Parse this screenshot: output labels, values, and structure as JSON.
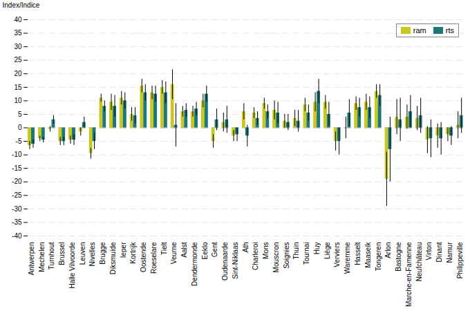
{
  "chart_data": {
    "type": "bar",
    "ylabel": "Index/Indice",
    "categories": [
      "Antwerpen",
      "Mechelen",
      "Turnhout",
      "Brussel",
      "Halle Vilvoorde",
      "Leuven",
      "Nivelles",
      "Brugge",
      "Diksmuide",
      "Ieper",
      "Kortrijk",
      "Oostende",
      "Roeselare",
      "Tielt",
      "Veurne",
      "Aalst",
      "Dendermonde",
      "Eeklo",
      "Gent",
      "Oudenaarde",
      "Sint-Niklaas",
      "Ath",
      "Charleroi",
      "Mons",
      "Mouscron",
      "Soignies",
      "Thuin",
      "Tournai",
      "Huy",
      "Liège",
      "Verviers",
      "Waremme",
      "Hasselt",
      "Maaseik",
      "Tongeren",
      "Arlon",
      "Bastogne",
      "Marche-en-Famenne",
      "Neufchâteau",
      "Virton",
      "Dinant",
      "Namur",
      "Philippeville"
    ],
    "series": [
      {
        "name": "ram",
        "color": "#c8c81e",
        "values": [
          -6.5,
          -4.0,
          -0.5,
          -5.0,
          -4.5,
          -1.5,
          -9.5,
          11.0,
          9.5,
          11.0,
          5.0,
          15.5,
          13.0,
          15.0,
          16.0,
          6.0,
          6.0,
          10.0,
          -5.0,
          2.0,
          -3.0,
          6.0,
          5.5,
          9.0,
          6.5,
          2.5,
          3.5,
          8.5,
          9.5,
          9.5,
          -5.0,
          0.0,
          9.0,
          9.5,
          13.5,
          -19.0,
          4.0,
          4.0,
          3.5,
          -4.5,
          -3.0,
          -2.5,
          1.0
        ],
        "error_low": [
          1.5,
          1.0,
          1.0,
          1.5,
          1.5,
          1.5,
          2.0,
          1.5,
          3.0,
          2.5,
          2.5,
          2.5,
          2.5,
          2.5,
          5.5,
          2.0,
          2.0,
          2.5,
          2.5,
          3.5,
          2.0,
          3.0,
          2.0,
          2.0,
          3.5,
          2.5,
          3.0,
          2.5,
          3.5,
          2.5,
          3.5,
          4.0,
          2.5,
          3.0,
          2.5,
          10.0,
          6.5,
          4.5,
          4.5,
          5.0,
          4.5,
          2.5,
          5.0
        ],
        "error_high": [
          1.5,
          1.0,
          1.0,
          1.5,
          1.5,
          1.5,
          2.0,
          1.5,
          3.0,
          2.5,
          2.5,
          2.5,
          2.5,
          2.5,
          5.5,
          2.0,
          2.0,
          2.5,
          2.5,
          3.5,
          2.0,
          3.0,
          2.0,
          2.0,
          3.5,
          2.5,
          3.0,
          2.5,
          3.5,
          2.5,
          3.5,
          4.0,
          2.5,
          3.0,
          2.5,
          10.0,
          6.5,
          4.5,
          4.5,
          5.0,
          4.5,
          2.5,
          5.0
        ]
      },
      {
        "name": "rts",
        "color": "#1e7878",
        "values": [
          -6.0,
          -4.5,
          3.0,
          -5.0,
          -4.5,
          2.0,
          -5.0,
          8.0,
          8.0,
          10.0,
          4.5,
          13.0,
          12.5,
          13.0,
          1.0,
          6.5,
          7.0,
          12.5,
          3.0,
          3.0,
          -2.5,
          -3.0,
          3.5,
          6.0,
          5.5,
          2.0,
          2.5,
          5.5,
          13.5,
          5.0,
          -5.0,
          5.5,
          7.5,
          7.5,
          12.0,
          -8.0,
          3.0,
          6.0,
          4.5,
          -4.0,
          -4.0,
          -3.0,
          4.5
        ],
        "error_low": [
          1.5,
          1.0,
          1.5,
          1.5,
          2.0,
          2.0,
          3.0,
          2.0,
          4.0,
          3.0,
          3.0,
          3.0,
          3.0,
          4.0,
          8.0,
          2.5,
          2.5,
          3.0,
          4.0,
          5.0,
          2.5,
          4.0,
          2.5,
          2.5,
          4.0,
          3.0,
          4.0,
          3.0,
          4.5,
          4.5,
          5.0,
          5.0,
          3.5,
          4.0,
          4.0,
          12.0,
          8.0,
          6.0,
          6.5,
          7.0,
          6.0,
          3.5,
          6.5
        ],
        "error_high": [
          1.5,
          1.0,
          1.5,
          1.5,
          2.0,
          2.0,
          3.0,
          2.0,
          4.0,
          3.0,
          3.0,
          3.0,
          3.0,
          4.0,
          8.0,
          2.5,
          2.5,
          3.0,
          4.0,
          5.0,
          2.5,
          4.0,
          2.5,
          2.5,
          4.0,
          3.0,
          4.0,
          3.0,
          4.5,
          4.5,
          5.0,
          5.0,
          3.5,
          4.0,
          4.0,
          12.0,
          8.0,
          6.0,
          6.5,
          7.0,
          6.0,
          3.5,
          6.5
        ]
      }
    ],
    "ylim": [
      -40,
      40
    ],
    "yticks": [
      -40,
      -35,
      -30,
      -25,
      -20,
      -15,
      -10,
      -5,
      0,
      5,
      10,
      15,
      20,
      25,
      30,
      35,
      40
    ],
    "grid": true,
    "legend": "upper right"
  }
}
